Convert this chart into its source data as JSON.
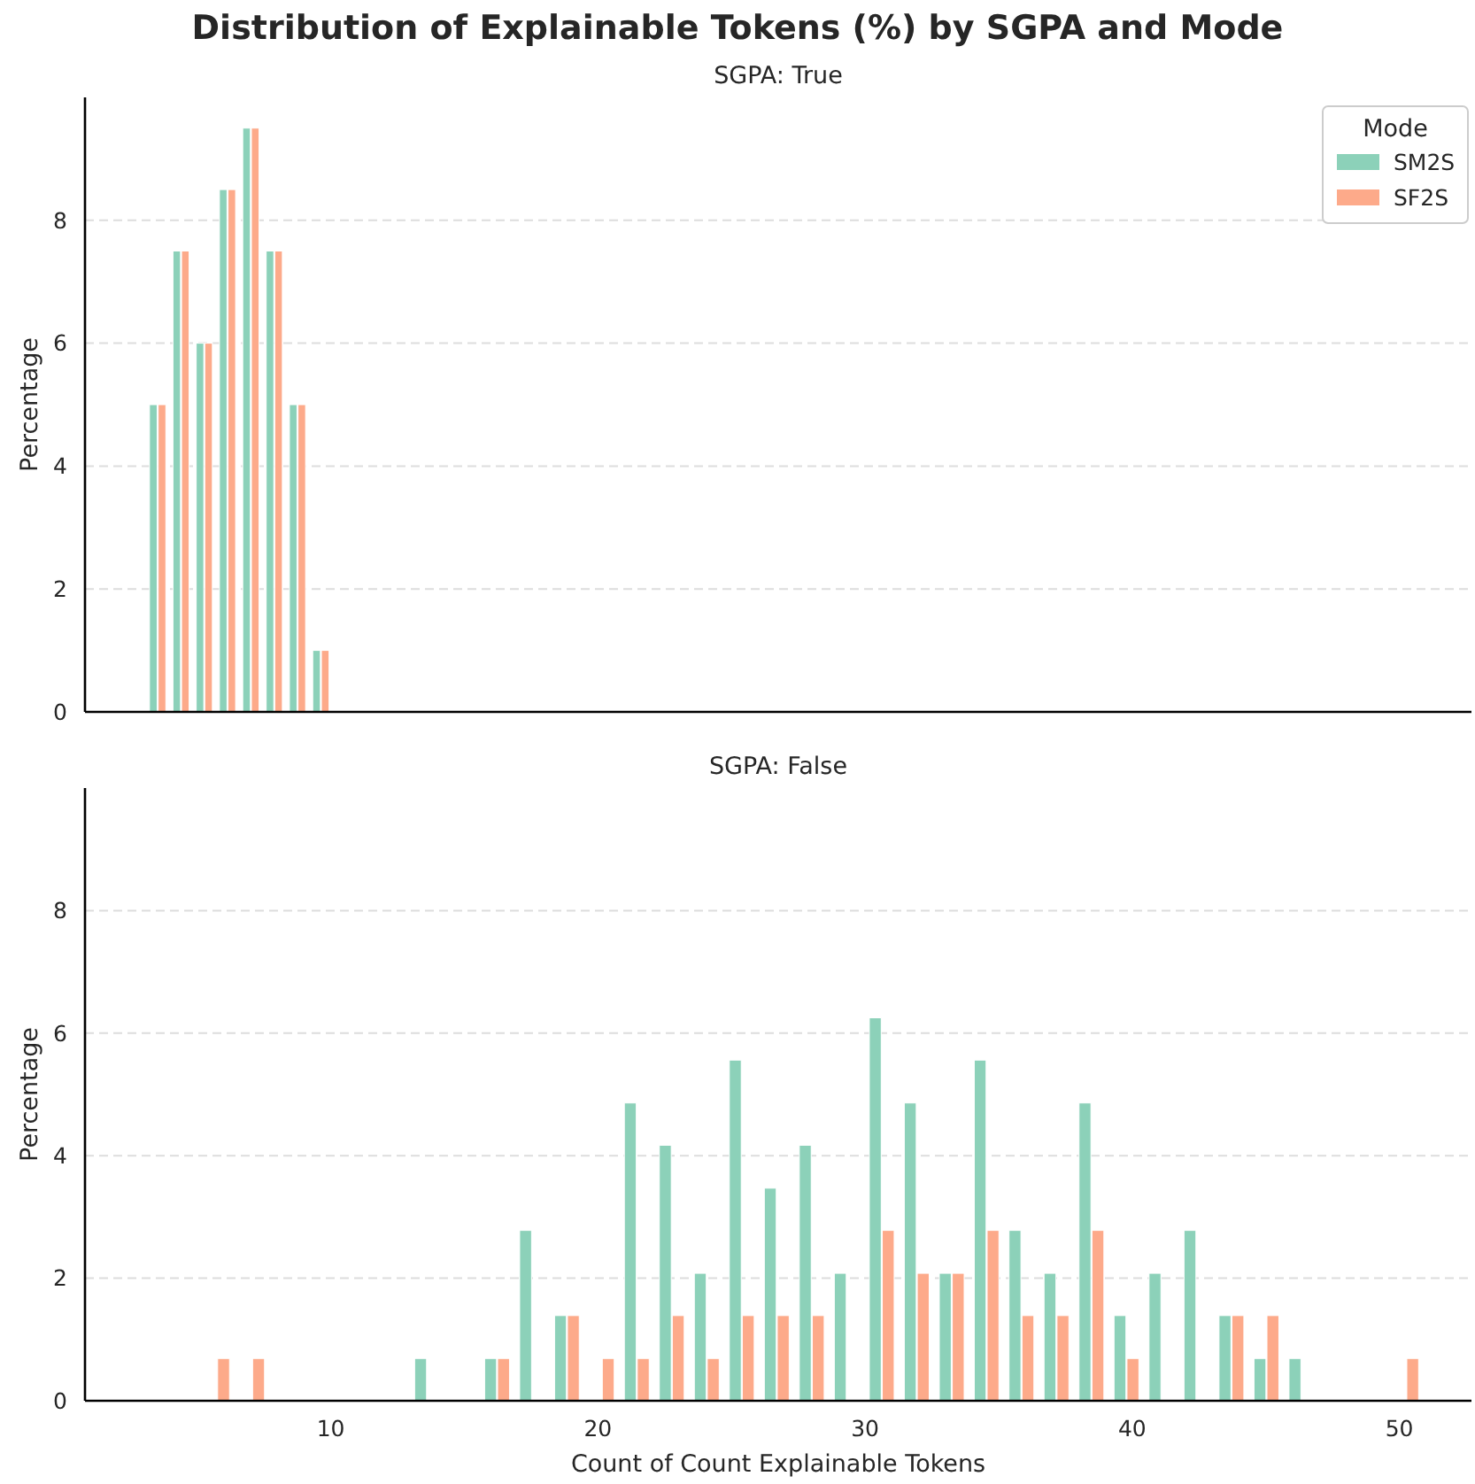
{
  "chart_data": [
    {
      "type": "histogram",
      "title": "Distribution of Explainable Tokens (%) by SGPA and Mode",
      "subtitle": "SGPA: True",
      "ylabel": "Percentage",
      "legend_title": "Mode",
      "legend": "top right",
      "grid": "y",
      "tick_labels": "y",
      "bins": [
        3.1,
        3.98,
        4.85,
        5.72,
        6.59,
        7.47,
        8.34,
        9.21,
        10.09
      ],
      "xlim": [
        0.8,
        52.7
      ],
      "xticks": [
        10,
        20,
        30,
        40,
        50
      ],
      "ylim": [
        0,
        10
      ],
      "yticks": [
        0,
        2,
        4,
        6,
        8
      ],
      "series": [
        {
          "name": "SM2S",
          "color": "#8cd1b9",
          "values": [
            5,
            7.5,
            6,
            8.5,
            9.5,
            7.5,
            5,
            1
          ]
        },
        {
          "name": "SF2S",
          "color": "#fdaa8a",
          "values": [
            5,
            7.5,
            6,
            8.5,
            9.5,
            7.5,
            5,
            1
          ]
        }
      ]
    },
    {
      "type": "histogram",
      "title": "SGPA: False",
      "xlabel": "Count of Count Explainable Tokens",
      "ylabel": "Percentage",
      "grid": "y",
      "bins": [
        5.11,
        6.42,
        7.73,
        9.04,
        10.35,
        11.66,
        12.97,
        14.28,
        15.59,
        16.9,
        18.21,
        19.51,
        20.82,
        22.13,
        23.44,
        24.75,
        26.06,
        27.37,
        28.68,
        29.99,
        31.3,
        32.61,
        33.92,
        35.22,
        36.53,
        37.84,
        39.15,
        40.46,
        41.77,
        43.08,
        44.39,
        45.7,
        47.01,
        48.32,
        49.63,
        50.93
      ],
      "xlim": [
        0.8,
        52.7
      ],
      "xticks": [
        10,
        20,
        30,
        40,
        50
      ],
      "ylim": [
        0,
        10
      ],
      "yticks": [
        0,
        2,
        4,
        6,
        8
      ],
      "series": [
        {
          "color": "#8cd1b9",
          "values": [
            0,
            0,
            0,
            0,
            0,
            0,
            0.69,
            0,
            0.69,
            2.78,
            1.39,
            0,
            4.86,
            4.17,
            2.08,
            5.56,
            3.47,
            4.17,
            2.08,
            6.25,
            4.86,
            2.08,
            5.56,
            2.78,
            2.08,
            4.86,
            1.39,
            2.08,
            2.78,
            1.39,
            0.69,
            0.69,
            0,
            0,
            0
          ]
        },
        {
          "color": "#fdaa8a",
          "values": [
            0.69,
            0.69,
            0,
            0,
            0,
            0,
            0,
            0,
            0.69,
            0,
            1.39,
            0.69,
            0.69,
            1.39,
            0.69,
            1.39,
            1.39,
            1.39,
            0,
            2.78,
            2.08,
            2.08,
            2.78,
            1.39,
            1.39,
            2.78,
            0.69,
            0,
            0,
            1.39,
            1.39,
            0,
            0,
            0,
            0.69
          ]
        }
      ]
    }
  ]
}
